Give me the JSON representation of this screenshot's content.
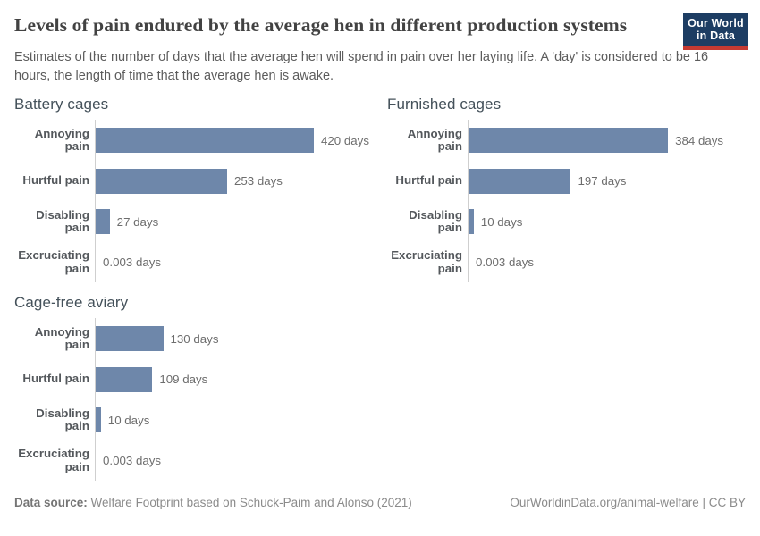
{
  "header": {
    "title": "Levels of pain endured by the average hen in different production systems",
    "subtitle": "Estimates of the number of days that the average hen will spend in pain over her laying life. A 'day' is considered to be 16 hours, the length of time that the average hen is awake.",
    "logo": {
      "line1": "Our World",
      "line2": "in Data"
    }
  },
  "chart_data": {
    "type": "bar",
    "orientation": "horizontal",
    "unit": "days",
    "xlim": [
      0,
      420
    ],
    "grid": false,
    "legend": "none",
    "categories": [
      "Annoying pain",
      "Hurtful pain",
      "Disabling pain",
      "Excruciating pain"
    ],
    "panels": [
      {
        "title": "Battery cages",
        "values": [
          420,
          253,
          27,
          0.003
        ],
        "value_labels": [
          "420 days",
          "253 days",
          "27 days",
          "0.003 days"
        ]
      },
      {
        "title": "Furnished cages",
        "values": [
          384,
          197,
          10,
          0.003
        ],
        "value_labels": [
          "384 days",
          "197 days",
          "10 days",
          "0.003 days"
        ]
      },
      {
        "title": "Cage-free aviary",
        "values": [
          130,
          109,
          10,
          0.003
        ],
        "value_labels": [
          "130 days",
          "109 days",
          "10 days",
          "0.003 days"
        ]
      }
    ],
    "colors": {
      "bar": "#6e87aa",
      "axis": "#cfcfcf"
    }
  },
  "footer": {
    "source_label": "Data source:",
    "source_text": "Welfare Footprint based on Schuck-Paim and Alonso (2021)",
    "attribution": "OurWorldinData.org/animal-welfare | CC BY"
  }
}
